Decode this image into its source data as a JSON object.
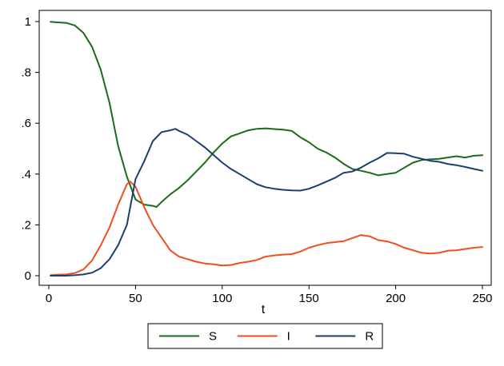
{
  "chart_data": {
    "type": "line",
    "title": "",
    "xlabel": "t",
    "ylabel": "",
    "xlim": [
      0,
      250
    ],
    "ylim": [
      0,
      1
    ],
    "xticks": [
      0,
      50,
      100,
      150,
      200,
      250
    ],
    "yticks": [
      0,
      0.2,
      0.4,
      0.6,
      0.8,
      1
    ],
    "xtick_labels": [
      "0",
      "50",
      "100",
      "150",
      "200",
      "250"
    ],
    "ytick_labels": [
      "0",
      ".2",
      ".4",
      ".6",
      ".8",
      "1"
    ],
    "grid": false,
    "legend_position": "bottom",
    "series": [
      {
        "name": "S",
        "color": "#1a6b1a",
        "x": [
          1,
          5,
          10,
          15,
          20,
          25,
          30,
          35,
          40,
          45,
          50,
          55,
          60,
          62,
          65,
          70,
          75,
          80,
          85,
          90,
          95,
          100,
          105,
          110,
          115,
          120,
          125,
          130,
          135,
          140,
          145,
          150,
          155,
          160,
          165,
          170,
          175,
          180,
          185,
          190,
          195,
          200,
          205,
          210,
          215,
          220,
          225,
          230,
          235,
          240,
          245,
          250
        ],
        "values": [
          0.999,
          0.997,
          0.995,
          0.985,
          0.955,
          0.9,
          0.81,
          0.68,
          0.51,
          0.39,
          0.3,
          0.28,
          0.275,
          0.27,
          0.29,
          0.32,
          0.345,
          0.375,
          0.41,
          0.445,
          0.485,
          0.52,
          0.548,
          0.56,
          0.572,
          0.578,
          0.58,
          0.577,
          0.575,
          0.57,
          0.545,
          0.525,
          0.5,
          0.485,
          0.465,
          0.44,
          0.42,
          0.413,
          0.405,
          0.395,
          0.4,
          0.405,
          0.425,
          0.445,
          0.455,
          0.458,
          0.46,
          0.465,
          0.47,
          0.465,
          0.472,
          0.474
        ]
      },
      {
        "name": "I",
        "color": "#f04e1e",
        "x": [
          1,
          5,
          10,
          15,
          20,
          25,
          30,
          35,
          40,
          45,
          47,
          50,
          55,
          60,
          65,
          70,
          75,
          80,
          85,
          90,
          95,
          100,
          105,
          110,
          115,
          120,
          125,
          130,
          135,
          140,
          145,
          150,
          155,
          160,
          165,
          170,
          175,
          178,
          180,
          185,
          190,
          195,
          200,
          205,
          210,
          215,
          220,
          225,
          230,
          235,
          240,
          245,
          250
        ],
        "values": [
          0.002,
          0.004,
          0.005,
          0.01,
          0.025,
          0.06,
          0.12,
          0.19,
          0.28,
          0.36,
          0.37,
          0.35,
          0.27,
          0.2,
          0.15,
          0.1,
          0.075,
          0.065,
          0.055,
          0.048,
          0.045,
          0.04,
          0.042,
          0.05,
          0.055,
          0.062,
          0.075,
          0.08,
          0.083,
          0.085,
          0.095,
          0.11,
          0.12,
          0.128,
          0.132,
          0.136,
          0.148,
          0.155,
          0.16,
          0.155,
          0.14,
          0.135,
          0.125,
          0.11,
          0.1,
          0.09,
          0.087,
          0.09,
          0.098,
          0.1,
          0.105,
          0.11,
          0.113
        ]
      },
      {
        "name": "R",
        "color": "#1b3f6e",
        "x": [
          1,
          5,
          10,
          15,
          20,
          25,
          30,
          35,
          40,
          45,
          50,
          55,
          60,
          65,
          70,
          73,
          75,
          80,
          85,
          90,
          95,
          100,
          105,
          110,
          115,
          120,
          125,
          130,
          135,
          140,
          145,
          150,
          155,
          160,
          165,
          170,
          175,
          180,
          185,
          190,
          195,
          200,
          205,
          210,
          215,
          220,
          225,
          230,
          235,
          240,
          245,
          250
        ],
        "values": [
          0.0,
          0.0,
          0.0,
          0.002,
          0.005,
          0.012,
          0.03,
          0.065,
          0.12,
          0.2,
          0.38,
          0.45,
          0.53,
          0.565,
          0.572,
          0.578,
          0.57,
          0.555,
          0.53,
          0.505,
          0.475,
          0.445,
          0.42,
          0.4,
          0.38,
          0.36,
          0.348,
          0.342,
          0.338,
          0.336,
          0.335,
          0.342,
          0.355,
          0.37,
          0.385,
          0.405,
          0.41,
          0.425,
          0.445,
          0.462,
          0.483,
          0.482,
          0.48,
          0.468,
          0.46,
          0.452,
          0.448,
          0.44,
          0.435,
          0.428,
          0.42,
          0.413
        ]
      }
    ]
  }
}
